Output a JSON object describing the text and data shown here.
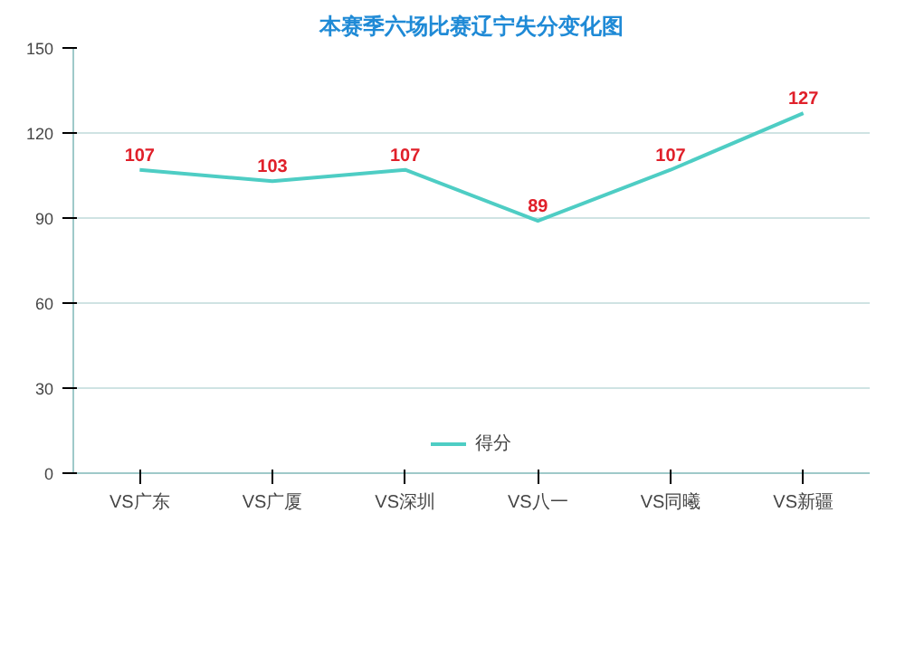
{
  "chart_data": {
    "type": "line",
    "title": "本赛季六场比赛辽宁失分变化图",
    "categories": [
      "VS广东",
      "VS广厦",
      "VS深圳",
      "VS八一",
      "VS同曦",
      "VS新疆"
    ],
    "series": [
      {
        "name": "得分",
        "color": "#4ecdc4",
        "values": [
          107,
          103,
          107,
          89,
          107,
          127
        ]
      }
    ],
    "ylim": [
      0,
      150
    ],
    "yticks": [
      0,
      30,
      60,
      90,
      120,
      150
    ],
    "grid": "y",
    "legend": "bottom",
    "data_labels": true
  }
}
